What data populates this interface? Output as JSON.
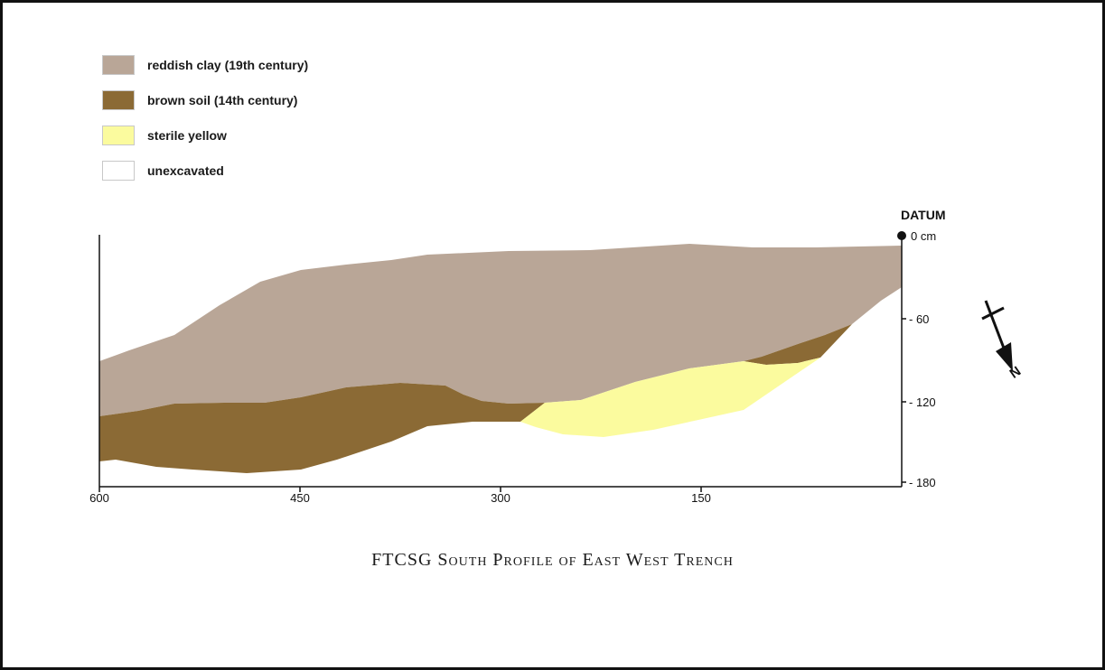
{
  "legend": [
    {
      "label": "reddish clay (19th century)",
      "color": "#b9a697"
    },
    {
      "label": "brown soil (14th century)",
      "color": "#8b6a35"
    },
    {
      "label": "sterile yellow",
      "color": "#fbfb9e"
    },
    {
      "label": "unexcavated",
      "color": "#ffffff"
    }
  ],
  "datum": {
    "label": "DATUM",
    "value_label": "0 cm"
  },
  "depth_axis": {
    "ticks": [
      "- 60",
      "- 120",
      "- 180"
    ]
  },
  "horizontal_axis": {
    "ticks": [
      "600",
      "450",
      "300",
      "150"
    ]
  },
  "north_arrow": {
    "label": "N"
  },
  "title": "FTCSG South Profile of East West Trench"
}
